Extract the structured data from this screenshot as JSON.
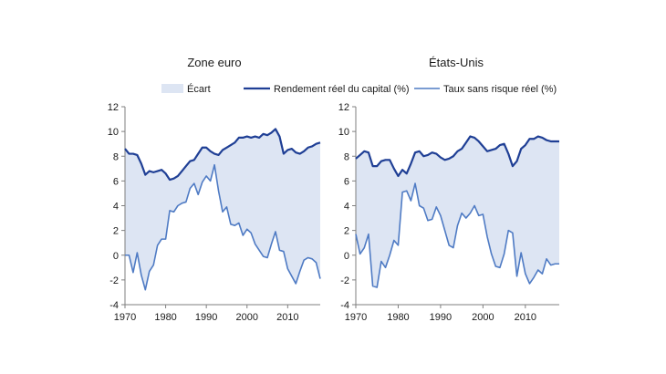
{
  "legend": {
    "gap_label": "Écart",
    "capital_label": "Rendement réel du capital (%)",
    "riskfree_label": "Taux sans risque réel (%)"
  },
  "colors": {
    "capital": "#1f3f95",
    "riskfree": "#4f7bc4",
    "gap_fill": "#dde5f3",
    "axis": "#7f7f7f"
  },
  "chart_data": [
    {
      "type": "area",
      "title": "Zone euro",
      "xlim": [
        1970,
        2018
      ],
      "ylim": [
        -4,
        12
      ],
      "x_ticks": [
        "1970",
        "1980",
        "1990",
        "2000",
        "2010"
      ],
      "y_ticks": [
        "-4",
        "-2",
        "0",
        "2",
        "4",
        "6",
        "8",
        "10",
        "12"
      ],
      "series": [
        {
          "name": "Rendement réel du capital (%)",
          "points": [
            [
              1970,
              8.6
            ],
            [
              1971,
              8.2
            ],
            [
              1972,
              8.2
            ],
            [
              1973,
              8.1
            ],
            [
              1974,
              7.4
            ],
            [
              1975,
              6.5
            ],
            [
              1976,
              6.8
            ],
            [
              1977,
              6.7
            ],
            [
              1978,
              6.8
            ],
            [
              1979,
              6.9
            ],
            [
              1980,
              6.6
            ],
            [
              1981,
              6.1
            ],
            [
              1982,
              6.2
            ],
            [
              1983,
              6.4
            ],
            [
              1984,
              6.8
            ],
            [
              1985,
              7.2
            ],
            [
              1986,
              7.6
            ],
            [
              1987,
              7.7
            ],
            [
              1988,
              8.2
            ],
            [
              1989,
              8.7
            ],
            [
              1990,
              8.7
            ],
            [
              1991,
              8.4
            ],
            [
              1992,
              8.2
            ],
            [
              1993,
              8.1
            ],
            [
              1994,
              8.5
            ],
            [
              1995,
              8.7
            ],
            [
              1996,
              8.9
            ],
            [
              1997,
              9.1
            ],
            [
              1998,
              9.5
            ],
            [
              1999,
              9.5
            ],
            [
              2000,
              9.6
            ],
            [
              2001,
              9.5
            ],
            [
              2002,
              9.6
            ],
            [
              2003,
              9.5
            ],
            [
              2004,
              9.8
            ],
            [
              2005,
              9.7
            ],
            [
              2006,
              9.9
            ],
            [
              2007,
              10.2
            ],
            [
              2008,
              9.6
            ],
            [
              2009,
              8.2
            ],
            [
              2010,
              8.5
            ],
            [
              2011,
              8.6
            ],
            [
              2012,
              8.3
            ],
            [
              2013,
              8.2
            ],
            [
              2014,
              8.4
            ],
            [
              2015,
              8.7
            ],
            [
              2016,
              8.8
            ],
            [
              2017,
              9.0
            ],
            [
              2018,
              9.1
            ]
          ]
        },
        {
          "name": "Taux sans risque réel (%)",
          "points": [
            [
              1970,
              0.0
            ],
            [
              1971,
              0.0
            ],
            [
              1972,
              -1.4
            ],
            [
              1973,
              0.2
            ],
            [
              1974,
              -1.6
            ],
            [
              1975,
              -2.8
            ],
            [
              1976,
              -1.3
            ],
            [
              1977,
              -0.8
            ],
            [
              1978,
              0.8
            ],
            [
              1979,
              1.3
            ],
            [
              1980,
              1.3
            ],
            [
              1981,
              3.6
            ],
            [
              1982,
              3.5
            ],
            [
              1983,
              4.0
            ],
            [
              1984,
              4.2
            ],
            [
              1985,
              4.3
            ],
            [
              1986,
              5.4
            ],
            [
              1987,
              5.8
            ],
            [
              1988,
              4.9
            ],
            [
              1989,
              5.9
            ],
            [
              1990,
              6.4
            ],
            [
              1991,
              6.0
            ],
            [
              1992,
              7.3
            ],
            [
              1993,
              5.2
            ],
            [
              1994,
              3.5
            ],
            [
              1995,
              3.9
            ],
            [
              1996,
              2.5
            ],
            [
              1997,
              2.4
            ],
            [
              1998,
              2.6
            ],
            [
              1999,
              1.6
            ],
            [
              2000,
              2.1
            ],
            [
              2001,
              1.8
            ],
            [
              2002,
              0.9
            ],
            [
              2003,
              0.4
            ],
            [
              2004,
              -0.1
            ],
            [
              2005,
              -0.2
            ],
            [
              2006,
              0.9
            ],
            [
              2007,
              1.9
            ],
            [
              2008,
              0.4
            ],
            [
              2009,
              0.3
            ],
            [
              2010,
              -1.1
            ],
            [
              2011,
              -1.7
            ],
            [
              2012,
              -2.3
            ],
            [
              2013,
              -1.3
            ],
            [
              2014,
              -0.4
            ],
            [
              2015,
              -0.2
            ],
            [
              2016,
              -0.3
            ],
            [
              2017,
              -0.6
            ],
            [
              2018,
              -1.9
            ]
          ]
        }
      ]
    },
    {
      "type": "area",
      "title": "États-Unis",
      "xlim": [
        1970,
        2018
      ],
      "ylim": [
        -4,
        12
      ],
      "x_ticks": [
        "1970",
        "1980",
        "1990",
        "2000",
        "2010"
      ],
      "y_ticks": [
        "-4",
        "-2",
        "0",
        "2",
        "4",
        "6",
        "8",
        "10",
        "12"
      ],
      "series": [
        {
          "name": "Rendement réel du capital (%)",
          "points": [
            [
              1970,
              7.8
            ],
            [
              1971,
              8.1
            ],
            [
              1972,
              8.4
            ],
            [
              1973,
              8.3
            ],
            [
              1974,
              7.2
            ],
            [
              1975,
              7.2
            ],
            [
              1976,
              7.6
            ],
            [
              1977,
              7.7
            ],
            [
              1978,
              7.7
            ],
            [
              1979,
              7.0
            ],
            [
              1980,
              6.4
            ],
            [
              1981,
              6.9
            ],
            [
              1982,
              6.6
            ],
            [
              1983,
              7.4
            ],
            [
              1984,
              8.3
            ],
            [
              1985,
              8.4
            ],
            [
              1986,
              8.0
            ],
            [
              1987,
              8.1
            ],
            [
              1988,
              8.3
            ],
            [
              1989,
              8.2
            ],
            [
              1990,
              7.9
            ],
            [
              1991,
              7.7
            ],
            [
              1992,
              7.8
            ],
            [
              1993,
              8.0
            ],
            [
              1994,
              8.4
            ],
            [
              1995,
              8.6
            ],
            [
              1996,
              9.1
            ],
            [
              1997,
              9.6
            ],
            [
              1998,
              9.5
            ],
            [
              1999,
              9.2
            ],
            [
              2000,
              8.8
            ],
            [
              2001,
              8.4
            ],
            [
              2002,
              8.5
            ],
            [
              2003,
              8.6
            ],
            [
              2004,
              8.9
            ],
            [
              2005,
              9.0
            ],
            [
              2006,
              8.2
            ],
            [
              2007,
              7.2
            ],
            [
              2008,
              7.6
            ],
            [
              2009,
              8.6
            ],
            [
              2010,
              8.9
            ],
            [
              2011,
              9.4
            ],
            [
              2012,
              9.4
            ],
            [
              2013,
              9.6
            ],
            [
              2014,
              9.5
            ],
            [
              2015,
              9.3
            ],
            [
              2016,
              9.2
            ],
            [
              2017,
              9.2
            ],
            [
              2018,
              9.2
            ]
          ]
        },
        {
          "name": "Taux sans risque réel (%)",
          "points": [
            [
              1970,
              1.7
            ],
            [
              1971,
              0.1
            ],
            [
              1972,
              0.6
            ],
            [
              1973,
              1.7
            ],
            [
              1974,
              -2.5
            ],
            [
              1975,
              -2.6
            ],
            [
              1976,
              -0.5
            ],
            [
              1977,
              -1.0
            ],
            [
              1978,
              0.0
            ],
            [
              1979,
              1.2
            ],
            [
              1980,
              0.8
            ],
            [
              1981,
              5.1
            ],
            [
              1982,
              5.2
            ],
            [
              1983,
              4.4
            ],
            [
              1984,
              5.8
            ],
            [
              1985,
              4.0
            ],
            [
              1986,
              3.8
            ],
            [
              1987,
              2.8
            ],
            [
              1988,
              2.9
            ],
            [
              1989,
              3.9
            ],
            [
              1990,
              3.2
            ],
            [
              1991,
              2.0
            ],
            [
              1992,
              0.8
            ],
            [
              1993,
              0.6
            ],
            [
              1994,
              2.4
            ],
            [
              1995,
              3.4
            ],
            [
              1996,
              3.0
            ],
            [
              1997,
              3.4
            ],
            [
              1998,
              4.0
            ],
            [
              1999,
              3.2
            ],
            [
              2000,
              3.3
            ],
            [
              2001,
              1.5
            ],
            [
              2002,
              0.1
            ],
            [
              2003,
              -0.9
            ],
            [
              2004,
              -1.0
            ],
            [
              2005,
              0.1
            ],
            [
              2006,
              2.0
            ],
            [
              2007,
              1.8
            ],
            [
              2008,
              -1.7
            ],
            [
              2009,
              0.2
            ],
            [
              2010,
              -1.5
            ],
            [
              2011,
              -2.3
            ],
            [
              2012,
              -1.8
            ],
            [
              2013,
              -1.2
            ],
            [
              2014,
              -1.5
            ],
            [
              2015,
              -0.3
            ],
            [
              2016,
              -0.8
            ],
            [
              2017,
              -0.7
            ],
            [
              2018,
              -0.7
            ]
          ]
        }
      ]
    }
  ]
}
